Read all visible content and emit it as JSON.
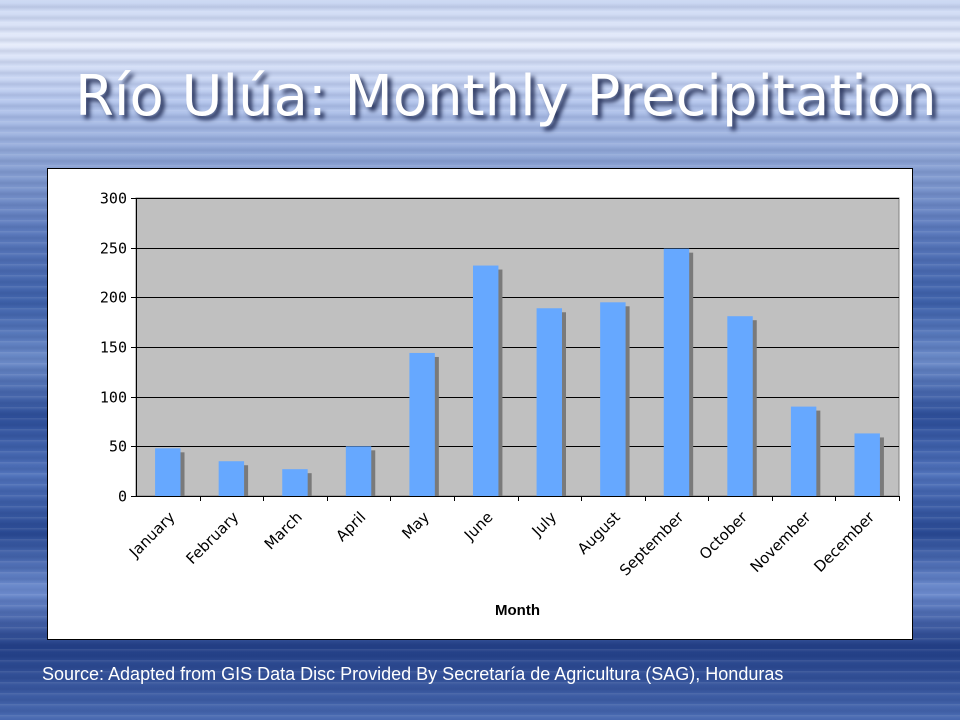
{
  "title": "Río Ulúa: Monthly Precipitation",
  "source": "Source: Adapted from GIS Data Disc Provided By Secretaría de Agricultura (SAG), Honduras",
  "colors": {
    "bar": "#66a8ff",
    "bar_shadow": "#7a7a7a",
    "plot_bg": "#c0c0c0",
    "grid": "#000000"
  },
  "chart_data": {
    "type": "bar",
    "xlabel": "Month",
    "ylabel": "",
    "ylim": [
      0,
      300
    ],
    "yticks": [
      0,
      50,
      100,
      150,
      200,
      250,
      300
    ],
    "grid": true,
    "legend": "none",
    "categories": [
      "January",
      "February",
      "March",
      "April",
      "May",
      "June",
      "July",
      "August",
      "September",
      "October",
      "November",
      "December"
    ],
    "values": [
      48,
      35,
      27,
      50,
      144,
      232,
      189,
      195,
      249,
      181,
      90,
      63
    ]
  }
}
